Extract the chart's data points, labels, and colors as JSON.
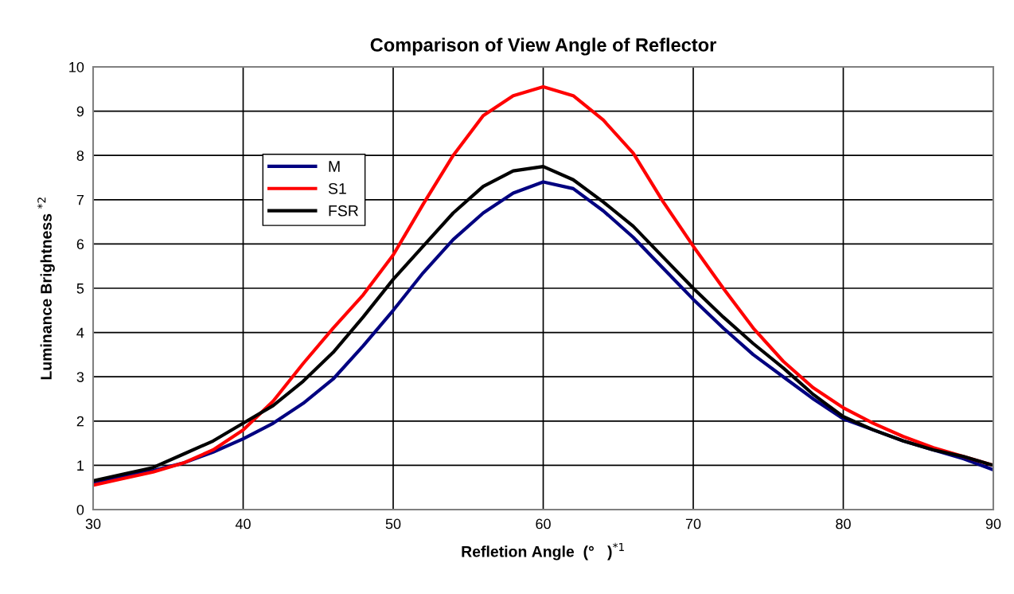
{
  "chart_data": {
    "type": "line",
    "title": "Comparison of View Angle of Reflector",
    "xlabel": "Refletion Angle  (°   )$^{*1}$",
    "ylabel": "Luminance Brightness $^{*2}$",
    "x": [
      30,
      32,
      34,
      36,
      38,
      40,
      42,
      44,
      46,
      48,
      50,
      52,
      54,
      56,
      58,
      60,
      62,
      64,
      66,
      68,
      70,
      72,
      74,
      76,
      78,
      80,
      82,
      84,
      86,
      88,
      90
    ],
    "series": [
      {
        "name": "M",
        "color": "#000080",
        "values": [
          0.62,
          0.75,
          0.88,
          1.05,
          1.3,
          1.6,
          1.95,
          2.4,
          2.95,
          3.7,
          4.5,
          5.35,
          6.1,
          6.7,
          7.15,
          7.4,
          7.25,
          6.75,
          6.15,
          5.45,
          4.75,
          4.1,
          3.5,
          3.0,
          2.5,
          2.05,
          1.8,
          1.55,
          1.35,
          1.15,
          0.9
        ]
      },
      {
        "name": "S1",
        "color": "#ff0000",
        "values": [
          0.55,
          0.7,
          0.85,
          1.05,
          1.35,
          1.8,
          2.45,
          3.3,
          4.1,
          4.85,
          5.75,
          6.9,
          8.0,
          8.9,
          9.35,
          9.55,
          9.35,
          8.8,
          8.05,
          6.95,
          5.95,
          5.0,
          4.1,
          3.35,
          2.75,
          2.3,
          1.95,
          1.65,
          1.4,
          1.2,
          1.0
        ]
      },
      {
        "name": "FSR",
        "color": "#000000",
        "values": [
          0.65,
          0.8,
          0.95,
          1.25,
          1.55,
          1.95,
          2.35,
          2.9,
          3.55,
          4.35,
          5.2,
          5.95,
          6.7,
          7.3,
          7.65,
          7.75,
          7.45,
          6.95,
          6.4,
          5.7,
          5.0,
          4.35,
          3.75,
          3.2,
          2.6,
          2.1,
          1.8,
          1.55,
          1.35,
          1.2,
          1.0
        ]
      }
    ],
    "xlim": [
      30,
      90
    ],
    "xticks": [
      30,
      40,
      50,
      60,
      70,
      80,
      90
    ],
    "ylim": [
      0,
      10
    ],
    "yticks": [
      0,
      1,
      2,
      3,
      4,
      5,
      6,
      7,
      8,
      9,
      10
    ],
    "grid": true,
    "legend": "top left"
  }
}
